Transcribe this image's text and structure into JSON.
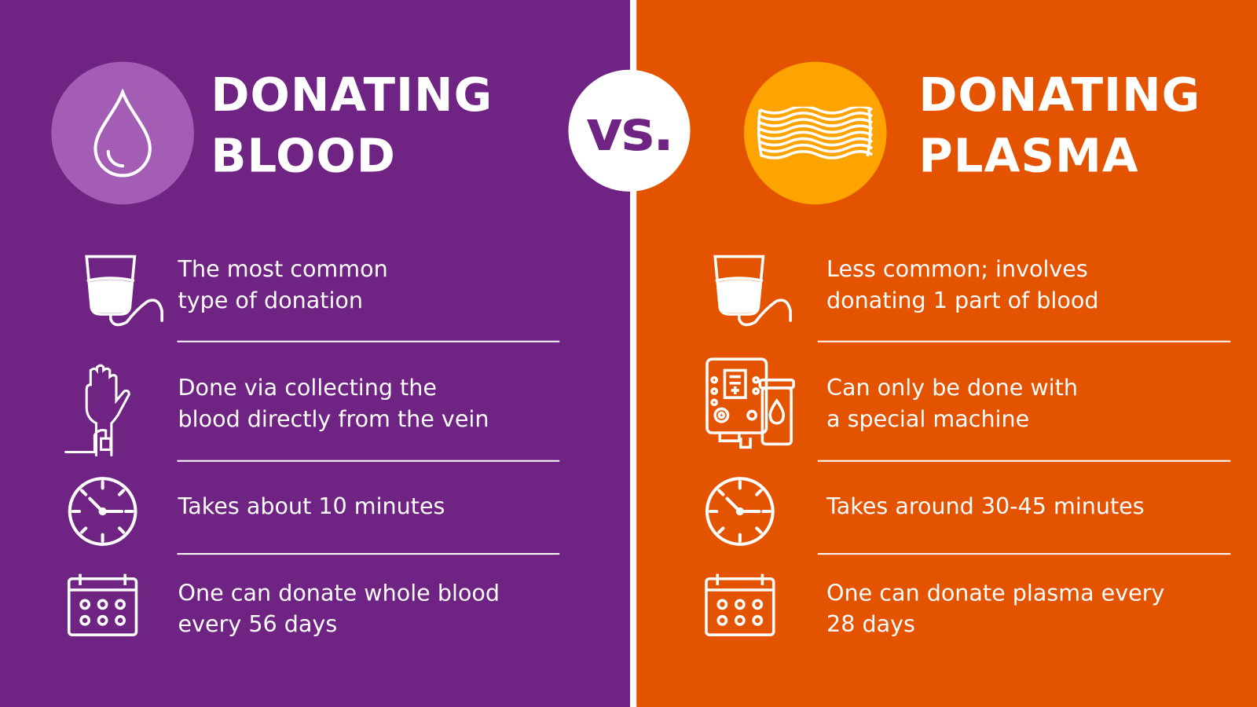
{
  "colors": {
    "blood_bg": "#6f2382",
    "blood_circle": "#a35db5",
    "plasma_bg": "#e35300",
    "plasma_circle": "#ffa300",
    "vs_text": "#6f2382"
  },
  "vs": "vs.",
  "blood": {
    "title_line1": "DONATING",
    "title_line2": "BLOOD",
    "icon": "blood-drop-icon",
    "rows": [
      {
        "icon": "blood-bag-icon",
        "line1": "The most common",
        "line2": "type of donation"
      },
      {
        "icon": "hand-iv-icon",
        "line1": "Done via collecting the",
        "line2": "blood directly from the vein"
      },
      {
        "icon": "clock-icon",
        "line1": "Takes about 10 minutes",
        "line2": ""
      },
      {
        "icon": "calendar-icon",
        "line1": "One can donate whole blood",
        "line2": "every 56 days"
      }
    ]
  },
  "plasma": {
    "title_line1": "DONATING",
    "title_line2": "PLASMA",
    "icon": "plasma-waves-icon",
    "rows": [
      {
        "icon": "blood-bag-icon",
        "line1": "Less common; involves",
        "line2": "donating 1 part of blood"
      },
      {
        "icon": "plasma-machine-icon",
        "line1": "Can only be done with",
        "line2": "a special machine"
      },
      {
        "icon": "clock-icon",
        "line1": "Takes around 30-45 minutes",
        "line2": ""
      },
      {
        "icon": "calendar-icon",
        "line1": "One can donate plasma every",
        "line2": "28 days"
      }
    ]
  }
}
